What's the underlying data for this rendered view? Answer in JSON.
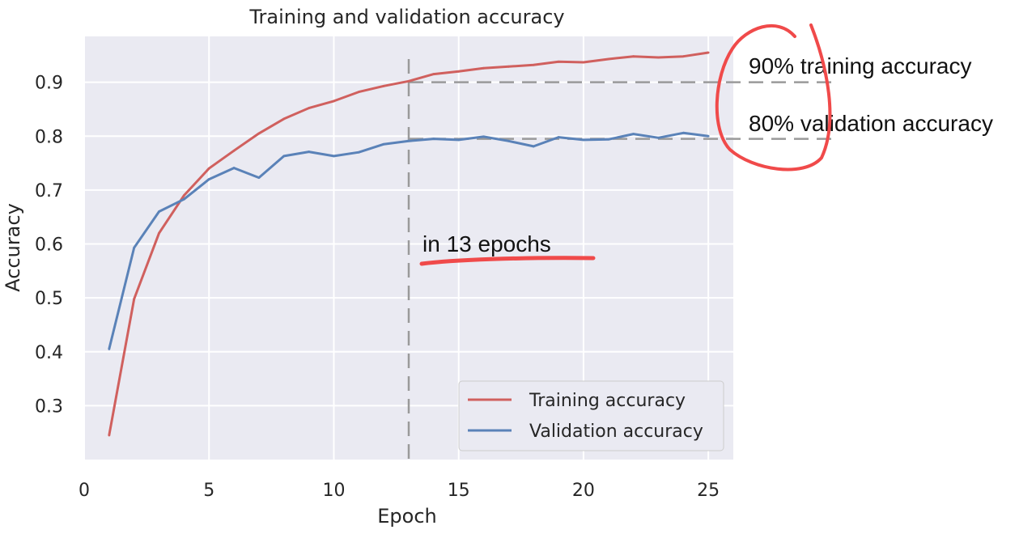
{
  "chart_data": {
    "type": "line",
    "title": "Training and validation accuracy",
    "xlabel": "Epoch",
    "ylabel": "Accuracy",
    "xlim": [
      0,
      26
    ],
    "ylim": [
      0.2,
      0.985
    ],
    "x_ticks": [
      0,
      5,
      10,
      15,
      20,
      25
    ],
    "y_ticks": [
      0.3,
      0.4,
      0.5,
      0.6,
      0.7,
      0.8,
      0.9
    ],
    "grid": true,
    "legend_position": "lower-right",
    "x": [
      1,
      2,
      3,
      4,
      5,
      6,
      7,
      8,
      9,
      10,
      11,
      12,
      13,
      14,
      15,
      16,
      17,
      18,
      19,
      20,
      21,
      22,
      23,
      24,
      25
    ],
    "series": [
      {
        "name": "Training accuracy",
        "color": "#d0605e",
        "values": [
          0.245,
          0.498,
          0.62,
          0.69,
          0.74,
          0.773,
          0.805,
          0.832,
          0.852,
          0.865,
          0.882,
          0.893,
          0.902,
          0.915,
          0.92,
          0.926,
          0.929,
          0.932,
          0.938,
          0.937,
          0.943,
          0.948,
          0.946,
          0.948,
          0.955
        ]
      },
      {
        "name": "Validation accuracy",
        "color": "#5a82b8",
        "values": [
          0.405,
          0.593,
          0.66,
          0.683,
          0.72,
          0.741,
          0.723,
          0.763,
          0.771,
          0.763,
          0.77,
          0.785,
          0.791,
          0.795,
          0.793,
          0.799,
          0.791,
          0.781,
          0.798,
          0.793,
          0.794,
          0.804,
          0.797,
          0.806,
          0.8
        ]
      }
    ],
    "annotations": {
      "training_text": "90% training accuracy",
      "validation_text": "80% validation accuracy",
      "epochs_text": "in 13 epochs",
      "marker_epoch": 13,
      "training_level": 0.9,
      "validation_level": 0.795,
      "marker_color": "#9a9a9a",
      "highlight_color": "#f04a4a"
    }
  }
}
